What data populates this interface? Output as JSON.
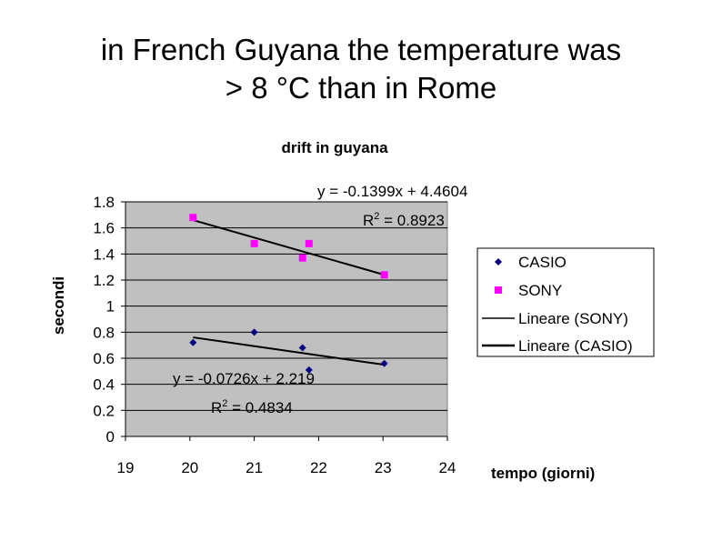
{
  "slide": {
    "title_line1": "in French Guyana the temperature was",
    "title_line2": "> 8 °C than in Rome"
  },
  "chart_data": {
    "type": "scatter",
    "title": "drift in guyana",
    "xlabel": "tempo (giorni)",
    "ylabel": "secondi",
    "xlim": [
      19,
      24
    ],
    "ylim": [
      0,
      1.8
    ],
    "x_ticks": [
      "19",
      "20",
      "21",
      "22",
      "23",
      "24"
    ],
    "y_ticks": [
      "0",
      "0.2",
      "0.4",
      "0.6",
      "0.8",
      "1",
      "1.2",
      "1.4",
      "1.6",
      "1.8"
    ],
    "grid": "horizontal",
    "plot_background": "#c0c0c0",
    "legend_position": "right",
    "series": [
      {
        "name": "CASIO",
        "marker": "diamond",
        "color": "#000080",
        "x": [
          20.05,
          21.0,
          21.75,
          21.85,
          23.02
        ],
        "y": [
          0.72,
          0.8,
          0.68,
          0.51,
          0.56
        ]
      },
      {
        "name": "SONY",
        "marker": "square",
        "color": "#ff00ff",
        "x": [
          20.05,
          21.0,
          21.75,
          21.85,
          23.02
        ],
        "y": [
          1.68,
          1.48,
          1.37,
          1.48,
          1.24
        ]
      }
    ],
    "trendlines": [
      {
        "name": "Lineare (SONY)",
        "color": "#000000",
        "x": [
          20.05,
          23.02
        ],
        "y": [
          1.66,
          1.24
        ],
        "equation": "y = -0.1399x + 4.4604",
        "r2_prefix": "R",
        "r2_exp": "2",
        "r2_value": " = 0.8923"
      },
      {
        "name": "Lineare (CASIO)",
        "color": "#000000",
        "x": [
          20.05,
          23.02
        ],
        "y": [
          0.76,
          0.55
        ],
        "equation": "y = -0.0726x + 2.219",
        "r2_prefix": "R",
        "r2_exp": "2",
        "r2_value": " = 0.4834"
      }
    ]
  }
}
